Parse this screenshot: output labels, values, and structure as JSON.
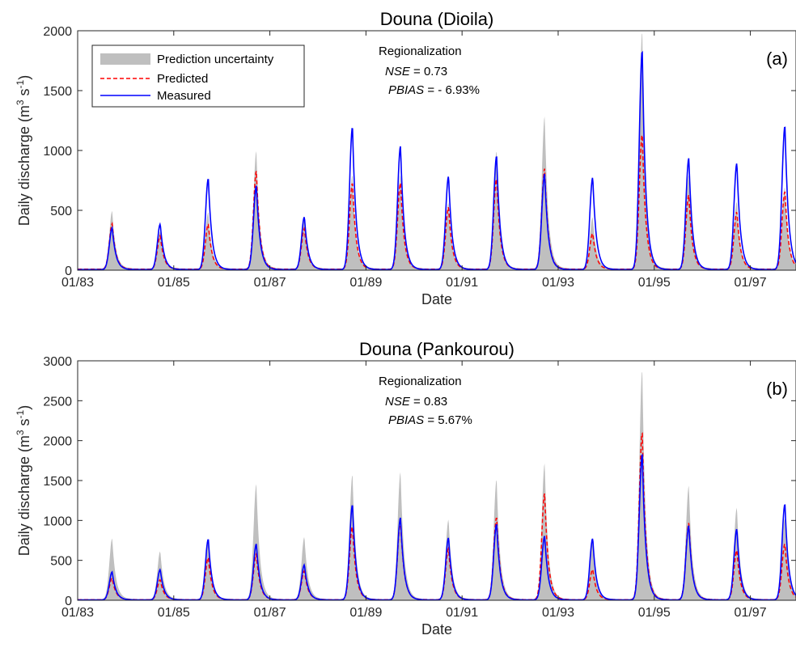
{
  "chart_data": [
    {
      "type": "line",
      "panel": "(a)",
      "title": "Douna (Dioila)",
      "xlabel": "Date",
      "ylabel": "Daily discharge (m³ s⁻¹)",
      "ylabel_main": "Daily discharge (m",
      "ylabel_sup1": "3",
      "ylabel_mid": " s",
      "ylabel_sup2": "-1",
      "ylabel_end": ")",
      "xlim": [
        1983.0,
        1997.95
      ],
      "ylim": [
        0,
        2000
      ],
      "yticks": [
        0,
        500,
        1000,
        1500,
        2000
      ],
      "xticks": [
        {
          "value": 1983,
          "label": "01/83"
        },
        {
          "value": 1985,
          "label": "01/85"
        },
        {
          "value": 1987,
          "label": "01/87"
        },
        {
          "value": 1989,
          "label": "01/89"
        },
        {
          "value": 1991,
          "label": "01/91"
        },
        {
          "value": 1993,
          "label": "01/93"
        },
        {
          "value": 1995,
          "label": "01/95"
        },
        {
          "value": 1997,
          "label": "01/97"
        }
      ],
      "annotation": {
        "heading": "Regionalization",
        "nse_label": "NSE",
        "nse_value": " = 0.73",
        "pbias_label": "PBIAS",
        "pbias_value": " = - 6.93%"
      },
      "legend": {
        "placement": "top-left",
        "entries": [
          "Prediction uncertainty",
          "Predicted",
          "Measured"
        ]
      },
      "colors": {
        "band": "#bfbfbf",
        "predicted": "#ff0000",
        "measured": "#0000ff"
      },
      "peaks": [
        {
          "year": 1983.72,
          "measured": 350,
          "predicted": 380,
          "upper": 480
        },
        {
          "year": 1984.72,
          "measured": 380,
          "predicted": 280,
          "upper": 310
        },
        {
          "year": 1985.72,
          "measured": 760,
          "predicted": 380,
          "upper": 470
        },
        {
          "year": 1986.72,
          "measured": 700,
          "predicted": 820,
          "upper": 980
        },
        {
          "year": 1987.72,
          "measured": 440,
          "predicted": 340,
          "upper": 400
        },
        {
          "year": 1988.72,
          "measured": 1190,
          "predicted": 720,
          "upper": 780
        },
        {
          "year": 1989.72,
          "measured": 1030,
          "predicted": 720,
          "upper": 780
        },
        {
          "year": 1990.72,
          "measured": 780,
          "predicted": 520,
          "upper": 550
        },
        {
          "year": 1991.72,
          "measured": 950,
          "predicted": 760,
          "upper": 980
        },
        {
          "year": 1992.72,
          "measured": 800,
          "predicted": 840,
          "upper": 1270
        },
        {
          "year": 1993.72,
          "measured": 770,
          "predicted": 300,
          "upper": 430
        },
        {
          "year": 1994.75,
          "measured": 1830,
          "predicted": 1130,
          "upper": 1980
        },
        {
          "year": 1995.72,
          "measured": 930,
          "predicted": 620,
          "upper": 780
        },
        {
          "year": 1996.72,
          "measured": 890,
          "predicted": 480,
          "upper": 560
        },
        {
          "year": 1997.72,
          "measured": 1200,
          "predicted": 650,
          "upper": 680
        }
      ]
    },
    {
      "type": "line",
      "panel": "(b)",
      "title": "Douna (Pankourou)",
      "xlabel": "Date",
      "ylabel": "Daily discharge (m³ s⁻¹)",
      "ylabel_main": "Daily discharge (m",
      "ylabel_sup1": "3",
      "ylabel_mid": " s",
      "ylabel_sup2": "-1",
      "ylabel_end": ")",
      "xlim": [
        1983.0,
        1997.95
      ],
      "ylim": [
        0,
        3000
      ],
      "yticks": [
        0,
        500,
        1000,
        1500,
        2000,
        2500,
        3000
      ],
      "xticks": [
        {
          "value": 1983,
          "label": "01/83"
        },
        {
          "value": 1985,
          "label": "01/85"
        },
        {
          "value": 1987,
          "label": "01/87"
        },
        {
          "value": 1989,
          "label": "01/89"
        },
        {
          "value": 1991,
          "label": "01/91"
        },
        {
          "value": 1993,
          "label": "01/93"
        },
        {
          "value": 1995,
          "label": "01/95"
        },
        {
          "value": 1997,
          "label": "01/97"
        }
      ],
      "annotation": {
        "heading": "Regionalization",
        "nse_label": "NSE",
        "nse_value": " = 0.83",
        "pbias_label": "PBIAS",
        "pbias_value": " = 5.67%"
      },
      "colors": {
        "band": "#bfbfbf",
        "predicted": "#ff0000",
        "measured": "#0000ff"
      },
      "peaks": [
        {
          "year": 1983.72,
          "measured": 350,
          "predicted": 270,
          "upper": 760
        },
        {
          "year": 1984.72,
          "measured": 380,
          "predicted": 250,
          "upper": 600
        },
        {
          "year": 1985.72,
          "measured": 760,
          "predicted": 530,
          "upper": 750
        },
        {
          "year": 1986.72,
          "measured": 700,
          "predicted": 570,
          "upper": 1440
        },
        {
          "year": 1987.72,
          "measured": 440,
          "predicted": 360,
          "upper": 780
        },
        {
          "year": 1988.72,
          "measured": 1190,
          "predicted": 920,
          "upper": 1560
        },
        {
          "year": 1989.72,
          "measured": 1030,
          "predicted": 980,
          "upper": 1590
        },
        {
          "year": 1990.72,
          "measured": 780,
          "predicted": 640,
          "upper": 1000
        },
        {
          "year": 1991.72,
          "measured": 950,
          "predicted": 1030,
          "upper": 1500
        },
        {
          "year": 1992.72,
          "measured": 800,
          "predicted": 1330,
          "upper": 1700
        },
        {
          "year": 1993.72,
          "measured": 770,
          "predicted": 380,
          "upper": 730
        },
        {
          "year": 1994.75,
          "measured": 1830,
          "predicted": 2100,
          "upper": 2870
        },
        {
          "year": 1995.72,
          "measured": 930,
          "predicted": 960,
          "upper": 1420
        },
        {
          "year": 1996.72,
          "measured": 890,
          "predicted": 620,
          "upper": 1150
        },
        {
          "year": 1997.72,
          "measured": 1200,
          "predicted": 700,
          "upper": 1010
        }
      ]
    }
  ]
}
